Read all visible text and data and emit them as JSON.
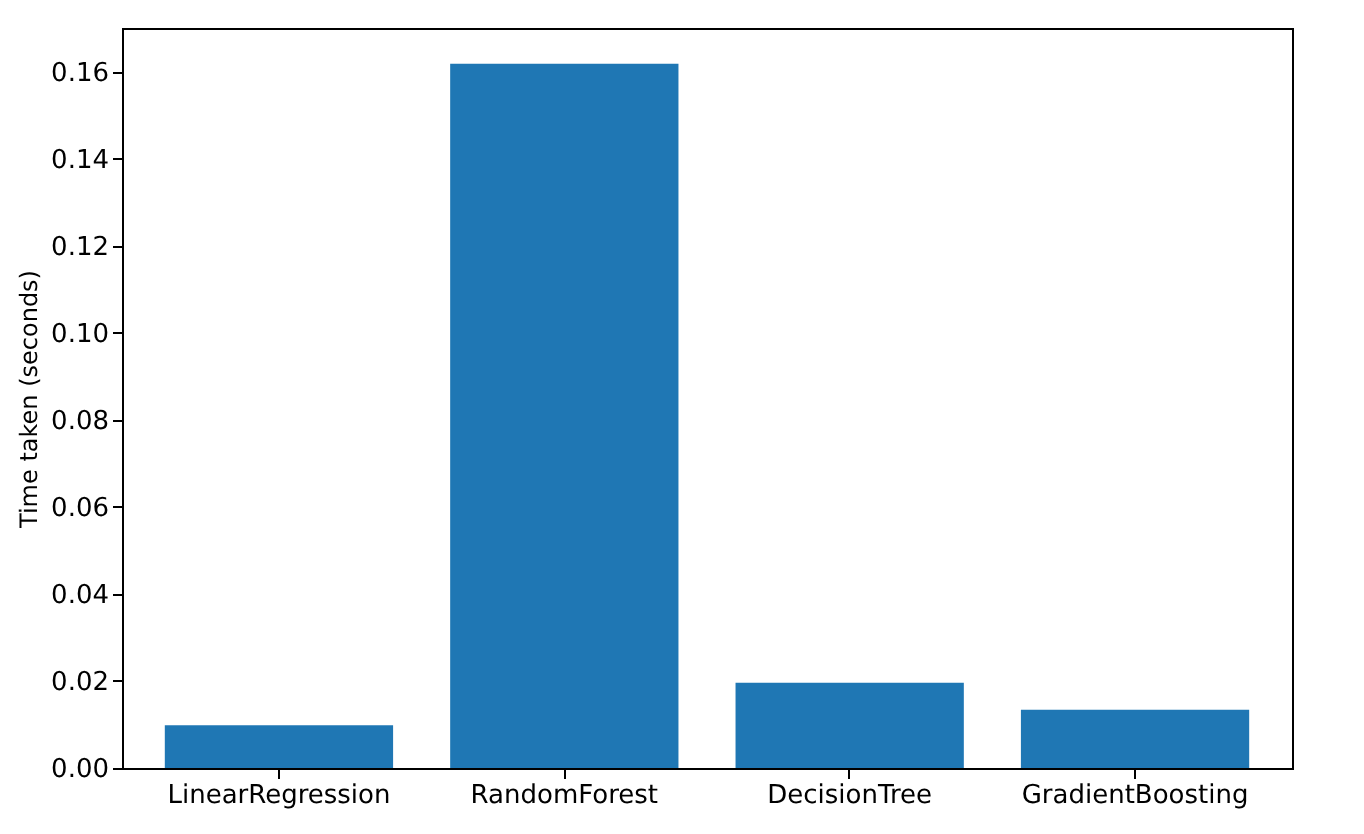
{
  "chart_data": {
    "type": "bar",
    "ylabel": "Time taken (seconds)",
    "categories": [
      "LinearRegression",
      "RandomForest",
      "DecisionTree",
      "GradientBoosting"
    ],
    "values": [
      0.0098,
      0.1618,
      0.0196,
      0.0134
    ],
    "color": "#1f77b4",
    "ylim": [
      0,
      0.17
    ],
    "yticks": [
      {
        "value": 0,
        "label": "0.00"
      },
      {
        "value": 0.02,
        "label": "0.02"
      },
      {
        "value": 0.04,
        "label": "0.04"
      },
      {
        "value": 0.06,
        "label": "0.06"
      },
      {
        "value": 0.08,
        "label": "0.08"
      },
      {
        "value": 0.1,
        "label": "0.10"
      },
      {
        "value": 0.12,
        "label": "0.12"
      },
      {
        "value": 0.14,
        "label": "0.14"
      },
      {
        "value": 0.16,
        "label": "0.16"
      }
    ],
    "grid": false
  }
}
